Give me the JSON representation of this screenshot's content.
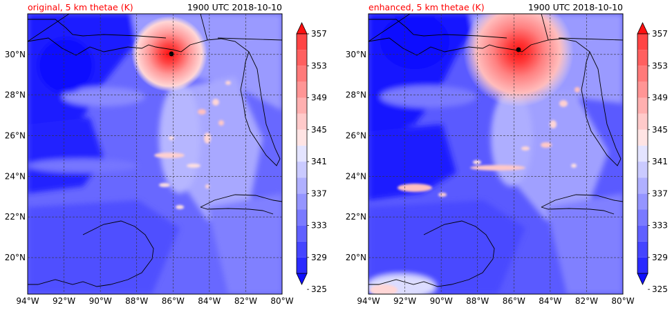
{
  "chart_data": [
    {
      "type": "heatmap",
      "panel_title": "original, 5 km thetae (K)",
      "time_label": "1900 UTC 2018-10-10",
      "x_ticks": [
        "94°W",
        "92°W",
        "90°W",
        "88°W",
        "86°W",
        "84°W",
        "82°W",
        "80°W"
      ],
      "x_tick_values": [
        -94,
        -92,
        -90,
        -88,
        -86,
        -84,
        -82,
        -80
      ],
      "y_ticks": [
        "20°N",
        "22°N",
        "24°N",
        "26°N",
        "28°N",
        "30°N"
      ],
      "y_tick_values": [
        20,
        22,
        24,
        26,
        28,
        30
      ],
      "xlim": [
        -94,
        -80
      ],
      "ylim": [
        18.2,
        32
      ],
      "storm_center": {
        "lon": -85.9,
        "lat": 30.0
      },
      "storm_peak_value": 357,
      "grid": true
    },
    {
      "type": "heatmap",
      "panel_title": "enhanced, 5 km thetae (K)",
      "time_label": "1900 UTC 2018-10-10",
      "x_ticks": [
        "94°W",
        "92°W",
        "90°W",
        "88°W",
        "86°W",
        "84°W",
        "82°W",
        "80°W"
      ],
      "x_tick_values": [
        -94,
        -92,
        -90,
        -88,
        -86,
        -84,
        -82,
        -80
      ],
      "y_ticks": [
        "20°N",
        "22°N",
        "24°N",
        "26°N",
        "28°N",
        "30°N"
      ],
      "y_tick_values": [
        20,
        22,
        24,
        26,
        28,
        30
      ],
      "xlim": [
        -94,
        -80
      ],
      "ylim": [
        18.2,
        32
      ],
      "storm_center": {
        "lon": -85.95,
        "lat": 30.3
      },
      "storm_peak_value": 357,
      "grid": true
    }
  ],
  "colorbar": {
    "levels": [
      325,
      327,
      329,
      331,
      333,
      335,
      337,
      339,
      341,
      343,
      345,
      347,
      349,
      351,
      353,
      355,
      357,
      359
    ],
    "tick_labels": [
      "325",
      "329",
      "333",
      "337",
      "341",
      "345",
      "349",
      "353",
      "357"
    ],
    "tick_values": [
      325,
      329,
      333,
      337,
      341,
      345,
      349,
      353,
      357
    ],
    "colors": [
      "#1010ff",
      "#2a2aff",
      "#4545ff",
      "#6060ff",
      "#7a7aff",
      "#9595ff",
      "#b0b0ff",
      "#cacaff",
      "#e4e4ff",
      "#ffe4e4",
      "#ffcaca",
      "#ffb0b0",
      "#ff9595",
      "#ff7a7a",
      "#ff6060",
      "#ff4545",
      "#ff2a2a",
      "#ff1010"
    ],
    "extend": "both"
  },
  "colors": {
    "title_red": "#ff0000",
    "coast": "#000000"
  }
}
